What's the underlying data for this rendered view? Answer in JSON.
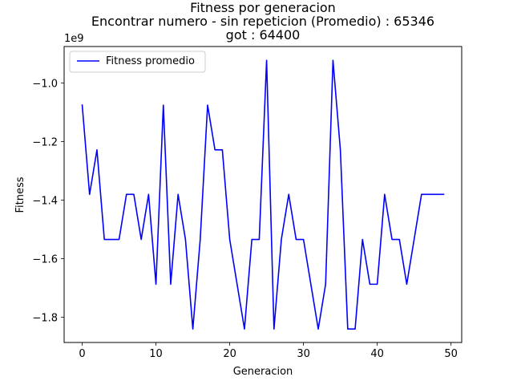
{
  "chart_data": {
    "type": "line",
    "title_lines": [
      "Fitness por generacion",
      "Encontrar numero - sin repeticion (Promedio) : 65346",
      "got : 64400"
    ],
    "xlabel": "Generacion",
    "ylabel": "Fitness",
    "y_offset_text": "1e9",
    "xlim": [
      -2.45,
      51.45
    ],
    "ylim": [
      -1.886,
      -0.875
    ],
    "x_ticks": [
      0,
      10,
      20,
      30,
      40,
      50
    ],
    "y_ticks": [
      -1.8,
      -1.6,
      -1.4,
      -1.2,
      -1.0
    ],
    "x_tick_labels": [
      "0",
      "10",
      "20",
      "30",
      "40",
      "50"
    ],
    "y_tick_labels": [
      "−1.8",
      "−1.6",
      "−1.4",
      "−1.2",
      "−1.0"
    ],
    "grid": false,
    "legend_position": "upper-left",
    "series": [
      {
        "name": "Fitness promedio",
        "color": "#0000ff",
        "x": [
          0,
          1,
          2,
          3,
          4,
          5,
          6,
          7,
          8,
          9,
          10,
          11,
          12,
          13,
          14,
          15,
          16,
          17,
          18,
          19,
          20,
          21,
          22,
          23,
          24,
          25,
          26,
          27,
          28,
          29,
          30,
          31,
          32,
          33,
          34,
          35,
          36,
          37,
          38,
          39,
          40,
          41,
          42,
          43,
          44,
          45,
          46,
          47,
          48,
          49
        ],
        "y": [
          -1.075,
          -1.38,
          -1.228,
          -1.534,
          -1.534,
          -1.534,
          -1.38,
          -1.38,
          -1.534,
          -1.38,
          -1.687,
          -1.075,
          -1.687,
          -1.38,
          -1.534,
          -1.84,
          -1.534,
          -1.075,
          -1.228,
          -1.228,
          -1.534,
          -1.687,
          -1.84,
          -1.534,
          -1.534,
          -0.922,
          -1.84,
          -1.534,
          -1.38,
          -1.534,
          -1.534,
          -1.687,
          -1.84,
          -1.687,
          -0.922,
          -1.228,
          -1.84,
          -1.84,
          -1.534,
          -1.687,
          -1.687,
          -1.38,
          -1.534,
          -1.534,
          -1.687,
          -1.534,
          -1.38,
          -1.38,
          -1.38,
          -1.38
        ]
      }
    ]
  }
}
